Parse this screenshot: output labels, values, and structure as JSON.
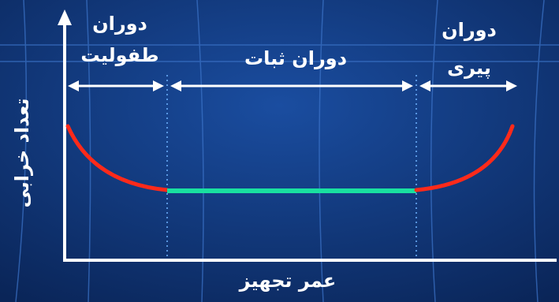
{
  "labels": {
    "infant_line1": "دوران",
    "infant_line2": "طفولیت",
    "stable": "دوران ثبات",
    "aging_line1": "دوران",
    "aging_line2": "پیری",
    "x_axis": "عمر تجهیز",
    "y_axis": "تعداد خرابی"
  },
  "colors": {
    "background": "#0b2a63",
    "decreasing_curve": "#ff2a1a",
    "flat_line": "#19e0a0",
    "increasing_curve": "#ff2a1a",
    "axes": "#ffffff",
    "arrows": "#ffffff",
    "divider_dotted": "#6fb3ff",
    "grid_lines": "#3c74c9"
  }
}
